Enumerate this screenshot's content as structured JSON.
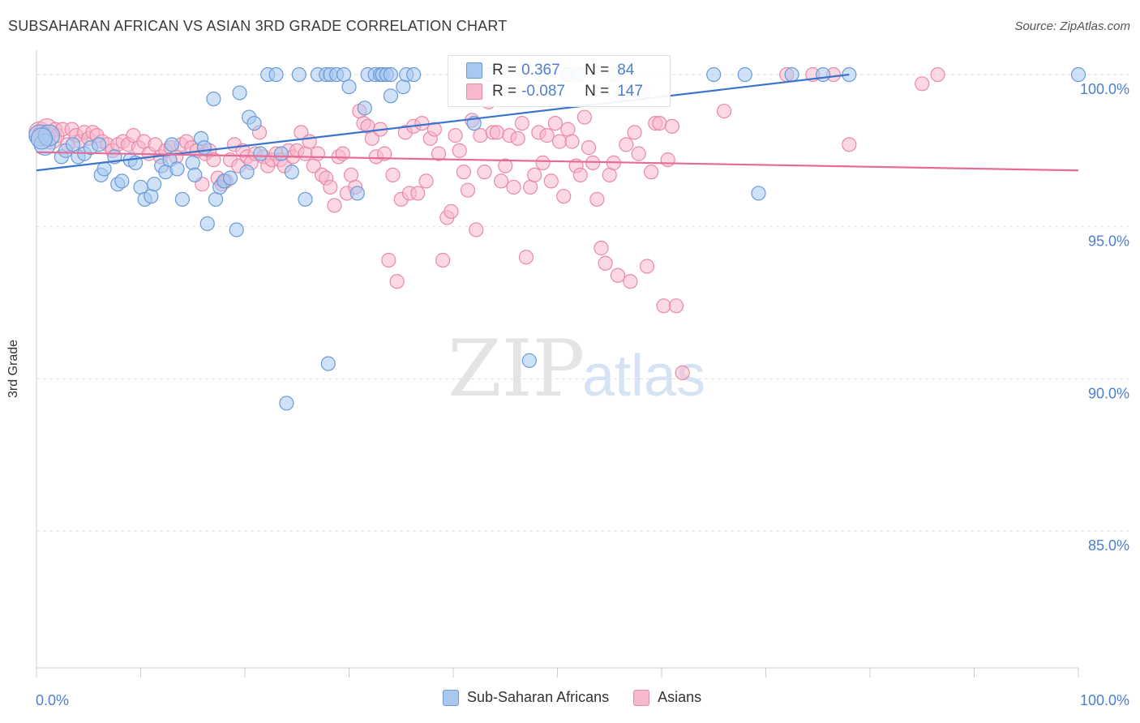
{
  "title": "SUBSAHARAN AFRICAN VS ASIAN 3RD GRADE CORRELATION CHART",
  "source": "Source: ZipAtlas.com",
  "watermark": {
    "zip": "ZIP",
    "atlas": "atlas"
  },
  "legend_box": {
    "r_label": "R =",
    "n_label": "N =",
    "rows": [
      {
        "r": "0.367",
        "n": "84"
      },
      {
        "r": "-0.087",
        "n": "147"
      }
    ]
  },
  "colors": {
    "blue_fill": "#a8c8f0",
    "blue_stroke": "#6a9bd8",
    "blue_line": "#3b74cc",
    "pink_fill": "#f7b8cb",
    "pink_stroke": "#e98aa8",
    "pink_line": "#e66b96",
    "tick_label": "#4d7fd1",
    "grid": "#dddddd"
  },
  "chart_data": {
    "type": "scatter",
    "title": "SUBSAHARAN AFRICAN VS ASIAN 3RD GRADE CORRELATION CHART",
    "xlabel": "",
    "ylabel": "3rd Grade",
    "xlim": [
      0,
      100
    ],
    "ylim": [
      80.5,
      100.8
    ],
    "x_tick_labels": [
      "0.0%",
      "100.0%"
    ],
    "y_ticks": [
      100,
      95,
      90,
      85
    ],
    "y_tick_labels": [
      "100.0%",
      "95.0%",
      "90.0%",
      "85.0%"
    ],
    "grid": true,
    "legend_position": "bottom-center",
    "series": [
      {
        "name": "Sub-Saharan Africans",
        "color": "#a8c8f0",
        "trend": {
          "x": [
            0,
            78
          ],
          "y": [
            96.85,
            100.0
          ]
        },
        "points": [
          [
            0.3,
            98.0
          ],
          [
            0.8,
            97.7
          ],
          [
            1.2,
            98.0
          ],
          [
            2.4,
            97.3
          ],
          [
            2.8,
            97.5
          ],
          [
            3.5,
            97.7
          ],
          [
            4.0,
            97.3
          ],
          [
            4.6,
            97.4
          ],
          [
            5.2,
            97.6
          ],
          [
            6.0,
            97.7
          ],
          [
            6.2,
            96.7
          ],
          [
            6.5,
            96.9
          ],
          [
            7.5,
            97.3
          ],
          [
            7.8,
            96.4
          ],
          [
            8.2,
            96.5
          ],
          [
            9.0,
            97.2
          ],
          [
            9.5,
            97.1
          ],
          [
            10.0,
            96.3
          ],
          [
            10.4,
            95.9
          ],
          [
            11.0,
            96.0
          ],
          [
            11.3,
            96.4
          ],
          [
            12.0,
            97.0
          ],
          [
            12.4,
            96.8
          ],
          [
            12.8,
            97.2
          ],
          [
            13.0,
            97.7
          ],
          [
            13.5,
            96.9
          ],
          [
            14.0,
            95.9
          ],
          [
            15.0,
            97.1
          ],
          [
            15.2,
            96.7
          ],
          [
            15.8,
            97.9
          ],
          [
            16.1,
            97.6
          ],
          [
            16.4,
            95.1
          ],
          [
            17.0,
            99.2
          ],
          [
            17.2,
            95.9
          ],
          [
            17.6,
            96.3
          ],
          [
            18.0,
            96.5
          ],
          [
            18.6,
            96.6
          ],
          [
            19.2,
            94.9
          ],
          [
            19.5,
            99.4
          ],
          [
            20.2,
            96.8
          ],
          [
            20.4,
            98.6
          ],
          [
            20.9,
            98.4
          ],
          [
            21.5,
            97.4
          ],
          [
            22.2,
            100.0
          ],
          [
            23.0,
            100.0
          ],
          [
            23.5,
            97.4
          ],
          [
            24.0,
            89.2
          ],
          [
            24.5,
            96.8
          ],
          [
            25.2,
            100.0
          ],
          [
            25.8,
            95.9
          ],
          [
            27.0,
            100.0
          ],
          [
            27.8,
            100.0
          ],
          [
            28.2,
            100.0
          ],
          [
            28.8,
            100.0
          ],
          [
            28.0,
            90.5
          ],
          [
            29.5,
            100.0
          ],
          [
            30.0,
            99.6
          ],
          [
            30.8,
            96.1
          ],
          [
            31.5,
            98.9
          ],
          [
            31.8,
            100.0
          ],
          [
            32.5,
            100.0
          ],
          [
            33.0,
            100.0
          ],
          [
            33.2,
            100.0
          ],
          [
            33.6,
            100.0
          ],
          [
            34.0,
            100.0
          ],
          [
            34.0,
            99.3
          ],
          [
            35.2,
            99.6
          ],
          [
            35.5,
            100.0
          ],
          [
            36.2,
            100.0
          ],
          [
            42.0,
            98.4
          ],
          [
            43.5,
            100.0
          ],
          [
            47.3,
            90.6
          ],
          [
            48.5,
            100.0
          ],
          [
            51.0,
            100.0
          ],
          [
            52.0,
            100.0
          ],
          [
            55.5,
            100.0
          ],
          [
            65.0,
            100.0
          ],
          [
            68.0,
            100.0
          ],
          [
            69.3,
            96.1
          ],
          [
            72.5,
            100.0
          ],
          [
            75.5,
            100.0
          ],
          [
            78.0,
            100.0
          ],
          [
            100.0,
            100.0
          ],
          [
            0.5,
            97.9
          ]
        ]
      },
      {
        "name": "Asians",
        "color": "#f7b8cb",
        "trend": {
          "x": [
            0,
            100
          ],
          "y": [
            97.45,
            96.85
          ]
        },
        "points": [
          [
            0.3,
            98.1
          ],
          [
            0.6,
            98.0
          ],
          [
            1.0,
            98.2
          ],
          [
            1.4,
            97.9
          ],
          [
            1.8,
            98.2
          ],
          [
            2.0,
            98.0
          ],
          [
            2.5,
            98.2
          ],
          [
            3.0,
            97.7
          ],
          [
            3.4,
            98.2
          ],
          [
            3.8,
            98.0
          ],
          [
            4.2,
            97.8
          ],
          [
            4.6,
            98.1
          ],
          [
            5.0,
            97.9
          ],
          [
            5.4,
            98.1
          ],
          [
            5.8,
            98.0
          ],
          [
            6.3,
            97.8
          ],
          [
            6.8,
            97.7
          ],
          [
            7.3,
            97.5
          ],
          [
            7.8,
            97.7
          ],
          [
            8.3,
            97.8
          ],
          [
            8.8,
            97.7
          ],
          [
            9.3,
            98.0
          ],
          [
            9.8,
            97.6
          ],
          [
            10.3,
            97.8
          ],
          [
            10.8,
            97.4
          ],
          [
            11.4,
            97.7
          ],
          [
            11.9,
            97.3
          ],
          [
            12.4,
            97.5
          ],
          [
            12.9,
            97.6
          ],
          [
            13.4,
            97.3
          ],
          [
            13.9,
            97.7
          ],
          [
            14.4,
            97.8
          ],
          [
            14.9,
            97.6
          ],
          [
            15.4,
            97.5
          ],
          [
            15.9,
            96.4
          ],
          [
            16.2,
            97.4
          ],
          [
            16.6,
            97.5
          ],
          [
            17.0,
            97.2
          ],
          [
            17.4,
            96.6
          ],
          [
            17.8,
            96.4
          ],
          [
            18.2,
            96.5
          ],
          [
            18.6,
            97.2
          ],
          [
            19.0,
            97.7
          ],
          [
            19.4,
            97.0
          ],
          [
            19.8,
            97.5
          ],
          [
            20.2,
            97.3
          ],
          [
            20.6,
            97.1
          ],
          [
            21.0,
            97.4
          ],
          [
            21.4,
            98.1
          ],
          [
            21.8,
            97.3
          ],
          [
            22.2,
            97.0
          ],
          [
            22.6,
            97.2
          ],
          [
            23.0,
            97.4
          ],
          [
            23.4,
            97.2
          ],
          [
            23.8,
            97.0
          ],
          [
            24.2,
            97.5
          ],
          [
            24.6,
            97.3
          ],
          [
            25.0,
            97.5
          ],
          [
            25.4,
            98.1
          ],
          [
            25.8,
            97.4
          ],
          [
            26.2,
            97.8
          ],
          [
            26.6,
            97.0
          ],
          [
            27.0,
            97.4
          ],
          [
            27.4,
            96.7
          ],
          [
            27.8,
            96.6
          ],
          [
            28.2,
            96.3
          ],
          [
            28.6,
            95.7
          ],
          [
            29.0,
            97.3
          ],
          [
            29.4,
            97.4
          ],
          [
            29.8,
            96.1
          ],
          [
            30.2,
            96.7
          ],
          [
            30.6,
            96.3
          ],
          [
            31.0,
            98.8
          ],
          [
            31.4,
            98.4
          ],
          [
            31.8,
            98.3
          ],
          [
            32.2,
            97.9
          ],
          [
            32.6,
            97.3
          ],
          [
            33.0,
            98.2
          ],
          [
            33.4,
            97.4
          ],
          [
            33.8,
            93.9
          ],
          [
            34.2,
            96.7
          ],
          [
            34.6,
            93.2
          ],
          [
            35.0,
            95.9
          ],
          [
            35.4,
            98.1
          ],
          [
            35.8,
            96.1
          ],
          [
            36.2,
            98.3
          ],
          [
            36.6,
            96.1
          ],
          [
            37.0,
            98.4
          ],
          [
            37.4,
            96.5
          ],
          [
            37.8,
            97.9
          ],
          [
            38.2,
            98.2
          ],
          [
            38.6,
            97.4
          ],
          [
            39.0,
            93.9
          ],
          [
            39.4,
            95.3
          ],
          [
            39.8,
            95.5
          ],
          [
            40.2,
            98.0
          ],
          [
            40.6,
            97.5
          ],
          [
            41.0,
            96.8
          ],
          [
            41.4,
            96.2
          ],
          [
            41.8,
            98.5
          ],
          [
            42.2,
            94.9
          ],
          [
            42.6,
            98.0
          ],
          [
            43.0,
            96.8
          ],
          [
            43.4,
            99.1
          ],
          [
            43.8,
            98.1
          ],
          [
            44.2,
            98.1
          ],
          [
            44.6,
            96.5
          ],
          [
            45.0,
            97.0
          ],
          [
            45.4,
            98.0
          ],
          [
            45.8,
            96.3
          ],
          [
            46.2,
            97.9
          ],
          [
            46.6,
            98.4
          ],
          [
            47.0,
            94.0
          ],
          [
            47.4,
            96.3
          ],
          [
            47.8,
            96.7
          ],
          [
            48.2,
            98.1
          ],
          [
            48.6,
            97.1
          ],
          [
            49.0,
            98.0
          ],
          [
            49.4,
            96.5
          ],
          [
            49.8,
            98.4
          ],
          [
            50.2,
            97.8
          ],
          [
            50.6,
            96.0
          ],
          [
            51.0,
            98.2
          ],
          [
            51.4,
            97.8
          ],
          [
            51.8,
            97.0
          ],
          [
            52.2,
            96.7
          ],
          [
            52.6,
            98.6
          ],
          [
            53.0,
            97.6
          ],
          [
            53.4,
            97.1
          ],
          [
            53.8,
            95.9
          ],
          [
            54.2,
            94.3
          ],
          [
            54.6,
            93.8
          ],
          [
            55.0,
            96.7
          ],
          [
            55.4,
            97.1
          ],
          [
            55.8,
            93.4
          ],
          [
            56.2,
            99.4
          ],
          [
            56.6,
            97.7
          ],
          [
            57.0,
            93.2
          ],
          [
            57.4,
            98.1
          ],
          [
            57.8,
            97.4
          ],
          [
            58.2,
            99.4
          ],
          [
            58.6,
            93.7
          ],
          [
            59.0,
            96.8
          ],
          [
            59.4,
            98.4
          ],
          [
            59.8,
            98.4
          ],
          [
            60.2,
            92.4
          ],
          [
            60.6,
            97.2
          ],
          [
            61.0,
            98.3
          ],
          [
            61.4,
            92.4
          ],
          [
            62.0,
            90.2
          ],
          [
            66.0,
            98.8
          ],
          [
            72.0,
            100.0
          ],
          [
            74.5,
            100.0
          ],
          [
            76.5,
            100.0
          ],
          [
            78.0,
            97.7
          ],
          [
            85.0,
            99.7
          ],
          [
            86.5,
            100.0
          ]
        ]
      }
    ]
  },
  "legend": [
    {
      "label": "Sub-Saharan Africans"
    },
    {
      "label": "Asians"
    }
  ]
}
